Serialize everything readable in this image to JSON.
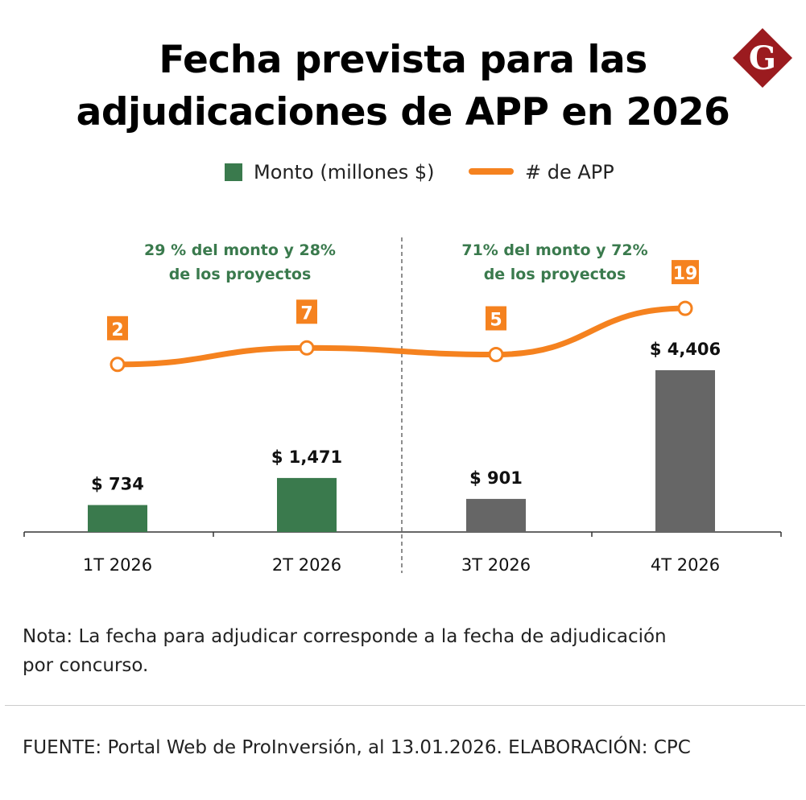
{
  "header": {
    "title_line1": "Fecha prevista para las",
    "title_line2": "adjudicaciones de APP en 2026",
    "logo_letter": "G"
  },
  "legend": {
    "bar_label": "Monto (millones $)",
    "line_label": "# de APP"
  },
  "chart_data": {
    "type": "bar+line",
    "categories": [
      "1T 2026",
      "2T 2026",
      "3T 2026",
      "4T 2026"
    ],
    "series": [
      {
        "name": "Monto (millones $)",
        "type": "bar",
        "values": [
          734,
          1471,
          901,
          4406
        ],
        "labels": [
          "$ 734",
          "$ 1,471",
          "$ 901",
          "$ 4,406"
        ],
        "colors": [
          "#3a7a4d",
          "#3a7a4d",
          "#666666",
          "#666666"
        ]
      },
      {
        "name": "# de APP",
        "type": "line",
        "values": [
          2,
          7,
          5,
          19
        ],
        "color": "#f5821f"
      }
    ],
    "annotations": [
      {
        "line1": "29 % del monto y 28%",
        "line2": "de los proyectos"
      },
      {
        "line1": "71% del monto y 72%",
        "line2": "de los proyectos"
      }
    ],
    "grid": false
  },
  "note": {
    "line1": "Nota: La fecha para adjudicar corresponde a la fecha de adjudicación",
    "line2": "por concurso."
  },
  "source": "FUENTE: Portal Web de ProInversión, al 13.01.2026.   ELABORACIÓN: CPC"
}
